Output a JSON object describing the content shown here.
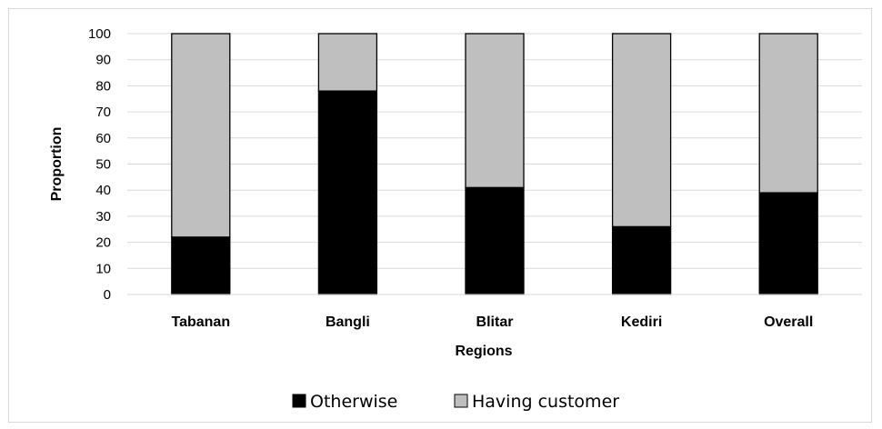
{
  "chart_data": {
    "type": "bar",
    "stacked": true,
    "percent_scale": true,
    "title": "",
    "xlabel": "Regions",
    "ylabel": "Proportion",
    "ylim": [
      0,
      100
    ],
    "yticks": [
      0,
      10,
      20,
      30,
      40,
      50,
      60,
      70,
      80,
      90,
      100
    ],
    "grid": true,
    "legend_position": "bottom",
    "categories": [
      "Tabanan",
      "Bangli",
      "Blitar",
      "Kediri",
      "Overall"
    ],
    "series": [
      {
        "name": "Otherwise",
        "color": "#000000",
        "values": [
          22,
          78,
          41,
          26,
          39
        ]
      },
      {
        "name": "Having customer",
        "color": "#bfbfbf",
        "values": [
          78,
          22,
          59,
          74,
          61
        ]
      }
    ]
  }
}
